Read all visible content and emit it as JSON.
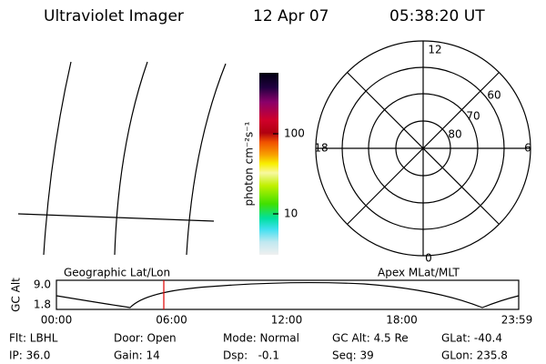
{
  "header": {
    "title": "Ultraviolet Imager",
    "date": "12 Apr 07",
    "time": "05:38:20 UT"
  },
  "colorbar": {
    "label": "photon cm⁻²s⁻¹",
    "ticks": [
      "100",
      "10"
    ]
  },
  "polar": {
    "mlt_labels": [
      "12",
      "6",
      "18",
      "0"
    ],
    "lat_labels": [
      "60",
      "70",
      "80"
    ]
  },
  "orbit": {
    "axis_label": "GC Alt",
    "y_labels": [
      "9.0",
      "1.8"
    ],
    "left_title": "Geographic Lat/Lon",
    "right_title": "Apex MLat/MLT",
    "time_labels": [
      "00:00",
      "06:00",
      "12:00",
      "18:00",
      "23:59"
    ]
  },
  "info": [
    [
      "Flt: LBHL",
      "Door: Open",
      "Mode: Normal",
      "GC Alt: 4.5 Re",
      "GLat: -40.4"
    ],
    [
      "IP: 36.0",
      "Gain: 14",
      "Dsp:   -0.1",
      "Seq: 39",
      "GLon: 235.8"
    ]
  ]
}
